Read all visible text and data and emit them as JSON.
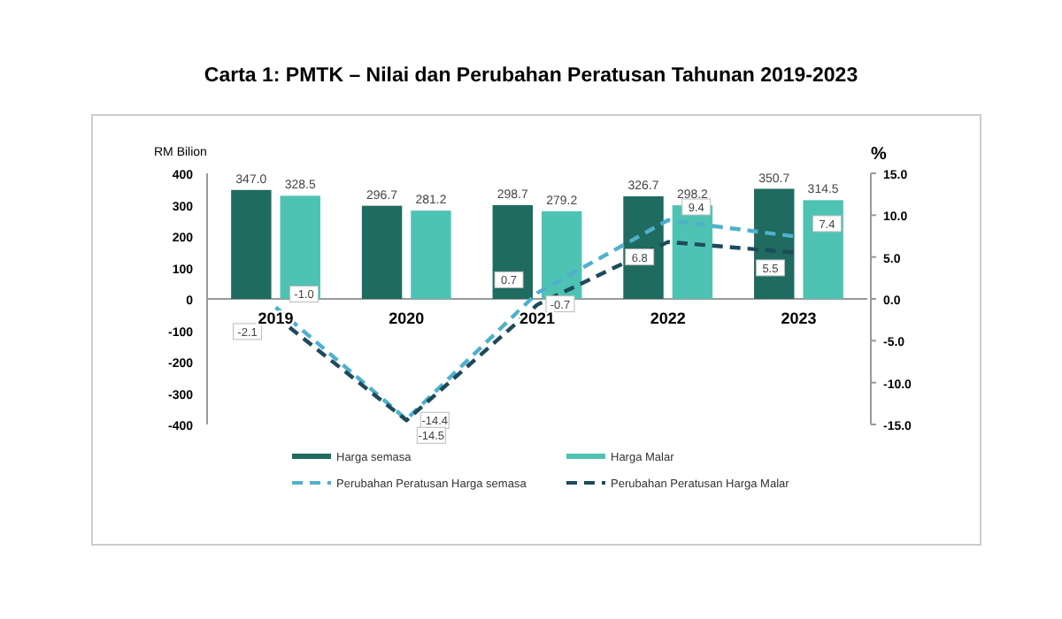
{
  "chart_data": {
    "type": "bar",
    "title": "Carta 1: PMTK – Nilai dan Perubahan Peratusan Tahunan 2019-2023",
    "ylabel": "RM Bilion",
    "y2label": "%",
    "categories": [
      "2019",
      "2020",
      "2021",
      "2022",
      "2023"
    ],
    "series": [
      {
        "name": "Harga semasa",
        "color": "#1f6b5f",
        "values": [
          347.0,
          296.7,
          298.7,
          326.7,
          350.7
        ],
        "value_labels": [
          "347.0",
          "296.7",
          "298.7",
          "326.7",
          "350.7"
        ]
      },
      {
        "name": "Harga Malar",
        "color": "#4fc3b3",
        "values": [
          328.5,
          281.2,
          279.2,
          298.2,
          314.5
        ],
        "value_labels": [
          "328.5",
          "281.2",
          "279.2",
          "298.2",
          "314.5"
        ]
      },
      {
        "name": "Perubahan Peratusan Harga semasa",
        "type": "line",
        "axis": "y2",
        "line_style": "dashed",
        "color": "#4fb0cc",
        "values": [
          -1.0,
          -14.4,
          0.7,
          9.4,
          7.4
        ],
        "value_labels": [
          "-1.0",
          "-14.4",
          "0.7",
          "9.4",
          "7.4"
        ]
      },
      {
        "name": "Perubahan Peratusan Harga Malar",
        "type": "line",
        "axis": "y2",
        "line_style": "dashed",
        "color": "#1d4a5c",
        "values": [
          -2.1,
          -14.5,
          -0.7,
          6.8,
          5.5
        ],
        "value_labels": [
          "-2.1",
          "-14.5",
          "-0.7",
          "6.8",
          "5.5"
        ]
      }
    ],
    "ylim": [
      -400,
      400
    ],
    "yticks": [
      -400,
      -300,
      -200,
      -100,
      0,
      100,
      200,
      300,
      400
    ],
    "y2lim": [
      -15,
      15
    ],
    "y2ticks": [
      {
        "value": -15,
        "label": "-15.0"
      },
      {
        "value": -10,
        "label": "-10.0"
      },
      {
        "value": -5,
        "label": "-5.0"
      },
      {
        "value": 0,
        "label": "0.0"
      },
      {
        "value": 5,
        "label": "5.0"
      },
      {
        "value": 10,
        "label": "10.0"
      },
      {
        "value": 15,
        "label": "15.0"
      }
    ],
    "legend": "bottom",
    "grid": false
  }
}
